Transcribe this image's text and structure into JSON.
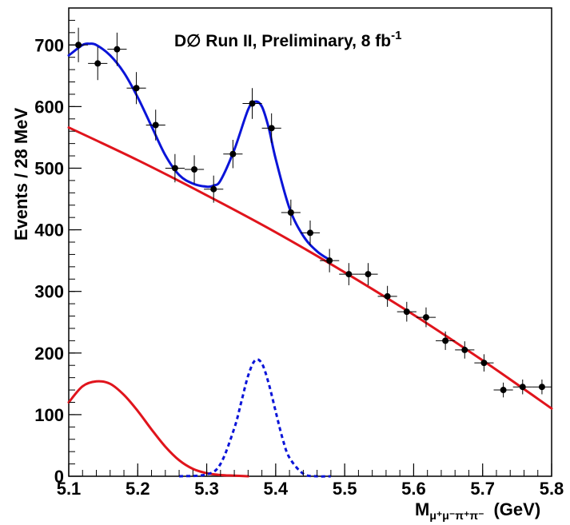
{
  "chart_data": {
    "type": "scatter",
    "title": "D∅ Run II, Preliminary,  8 fb",
    "title_superscript": "-1",
    "ylabel": "Events / 28 MeV",
    "xlabel": {
      "main": "M",
      "subscript": "μ⁺μ⁻π⁺π⁻",
      "unit": "(GeV)"
    },
    "xlim": [
      5.1,
      5.8
    ],
    "ylim": [
      0,
      760
    ],
    "x_ticks": [
      5.1,
      5.2,
      5.3,
      5.4,
      5.5,
      5.6,
      5.7,
      5.8
    ],
    "x_tick_labels": [
      "5.1",
      "5.2",
      "5.3",
      "5.4",
      "5.5",
      "5.6",
      "5.7",
      "5.8"
    ],
    "y_ticks": [
      0,
      100,
      200,
      300,
      400,
      500,
      600,
      700
    ],
    "y_tick_labels": [
      "0",
      "100",
      "200",
      "300",
      "400",
      "500",
      "600",
      "700"
    ],
    "grid": false,
    "bin_width": 0.028,
    "series": [
      {
        "kind": "points",
        "color": "#000000",
        "points": [
          {
            "x": 5.114,
            "y": 700,
            "err": 28
          },
          {
            "x": 5.142,
            "y": 670,
            "err": 27
          },
          {
            "x": 5.17,
            "y": 693,
            "err": 27
          },
          {
            "x": 5.198,
            "y": 630,
            "err": 26
          },
          {
            "x": 5.226,
            "y": 570,
            "err": 25
          },
          {
            "x": 5.254,
            "y": 500,
            "err": 23
          },
          {
            "x": 5.282,
            "y": 498,
            "err": 23
          },
          {
            "x": 5.31,
            "y": 466,
            "err": 22
          },
          {
            "x": 5.338,
            "y": 523,
            "err": 23
          },
          {
            "x": 5.366,
            "y": 605,
            "err": 25
          },
          {
            "x": 5.394,
            "y": 565,
            "err": 24
          },
          {
            "x": 5.422,
            "y": 428,
            "err": 21
          },
          {
            "x": 5.45,
            "y": 395,
            "err": 20
          },
          {
            "x": 5.478,
            "y": 350,
            "err": 19
          },
          {
            "x": 5.506,
            "y": 328,
            "err": 18
          },
          {
            "x": 5.534,
            "y": 328,
            "err": 18
          },
          {
            "x": 5.562,
            "y": 292,
            "err": 17
          },
          {
            "x": 5.59,
            "y": 267,
            "err": 16
          },
          {
            "x": 5.618,
            "y": 258,
            "err": 16
          },
          {
            "x": 5.646,
            "y": 220,
            "err": 15
          },
          {
            "x": 5.674,
            "y": 205,
            "err": 14
          },
          {
            "x": 5.702,
            "y": 184,
            "err": 14
          },
          {
            "x": 5.73,
            "y": 140,
            "err": 12
          },
          {
            "x": 5.758,
            "y": 145,
            "err": 12
          },
          {
            "x": 5.786,
            "y": 145,
            "err": 12
          }
        ]
      },
      {
        "kind": "total-fit",
        "color": "#0a14d8",
        "style": "solid",
        "x": [
          5.1,
          5.12,
          5.13,
          5.14,
          5.16,
          5.18,
          5.2,
          5.22,
          5.24,
          5.26,
          5.28,
          5.3,
          5.31,
          5.32,
          5.34,
          5.36,
          5.37,
          5.38,
          5.39,
          5.4,
          5.42,
          5.44,
          5.46,
          5.48
        ],
        "y": [
          683,
          700,
          702,
          700,
          683,
          655,
          615,
          568,
          521,
          489,
          475,
          470,
          472,
          480,
          530,
          595,
          608,
          600,
          565,
          515,
          435,
          390,
          365,
          350
        ]
      },
      {
        "kind": "background-line",
        "color": "#e0141c",
        "style": "solid",
        "x": [
          5.1,
          5.2,
          5.3,
          5.4,
          5.5,
          5.6,
          5.7,
          5.8
        ],
        "y": [
          566,
          513,
          456,
          396,
          331,
          262,
          188,
          110
        ]
      },
      {
        "kind": "background-peak",
        "color": "#e0141c",
        "style": "solid",
        "x": [
          5.1,
          5.12,
          5.14,
          5.16,
          5.18,
          5.2,
          5.22,
          5.24,
          5.26,
          5.28,
          5.3,
          5.32,
          5.34,
          5.36
        ],
        "y": [
          120,
          146,
          154,
          150,
          132,
          106,
          76,
          48,
          26,
          12,
          5,
          2,
          1,
          0
        ]
      },
      {
        "kind": "signal",
        "color": "#0a14d8",
        "style": "dotted",
        "x": [
          5.26,
          5.3,
          5.32,
          5.34,
          5.35,
          5.36,
          5.37,
          5.38,
          5.39,
          5.4,
          5.41,
          5.42,
          5.44,
          5.46,
          5.48
        ],
        "y": [
          0,
          3,
          20,
          78,
          120,
          163,
          188,
          183,
          150,
          105,
          61,
          30,
          4,
          0,
          0
        ]
      }
    ]
  }
}
